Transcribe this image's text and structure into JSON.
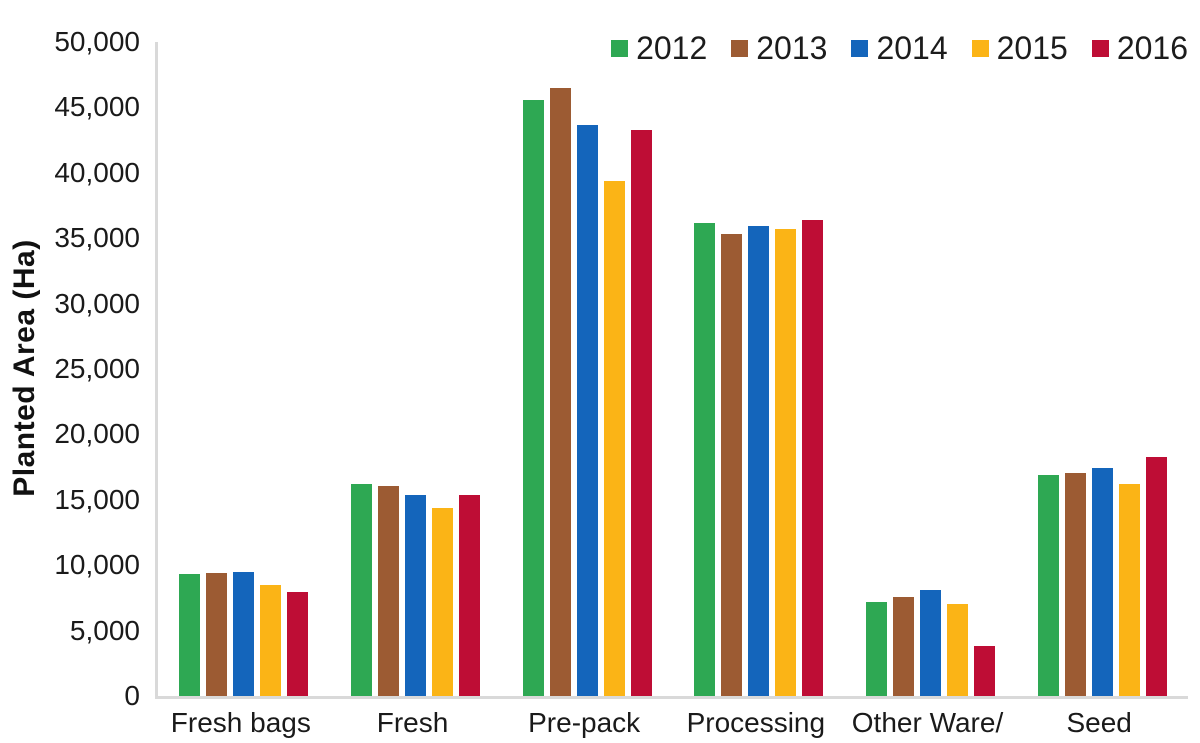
{
  "chart_data": {
    "type": "bar",
    "title": "",
    "xlabel": "",
    "ylabel": "Planted Area (Ha)",
    "ylim": [
      0,
      50000
    ],
    "ytick_step": 5000,
    "grid": false,
    "legend_position": "top-right",
    "axis_line_color": "#d9d9d9",
    "categories": [
      "Fresh bags",
      "Fresh",
      "Pre-pack",
      "Processing",
      "Other Ware/",
      "Seed"
    ],
    "series": [
      {
        "name": "2012",
        "color": "#2ea853",
        "values": [
          9350,
          16200,
          45600,
          36150,
          7150,
          16900
        ]
      },
      {
        "name": "2013",
        "color": "#9c5b33",
        "values": [
          9400,
          16050,
          46500,
          35350,
          7600,
          17050
        ]
      },
      {
        "name": "2014",
        "color": "#1465bb",
        "values": [
          9500,
          15400,
          43650,
          35950,
          8100,
          17450
        ]
      },
      {
        "name": "2015",
        "color": "#fbb416",
        "values": [
          8500,
          14400,
          39400,
          35700,
          7000,
          16200
        ]
      },
      {
        "name": "2016",
        "color": "#be0d35",
        "values": [
          7950,
          15350,
          43300,
          36400,
          3800,
          18250
        ]
      }
    ]
  }
}
